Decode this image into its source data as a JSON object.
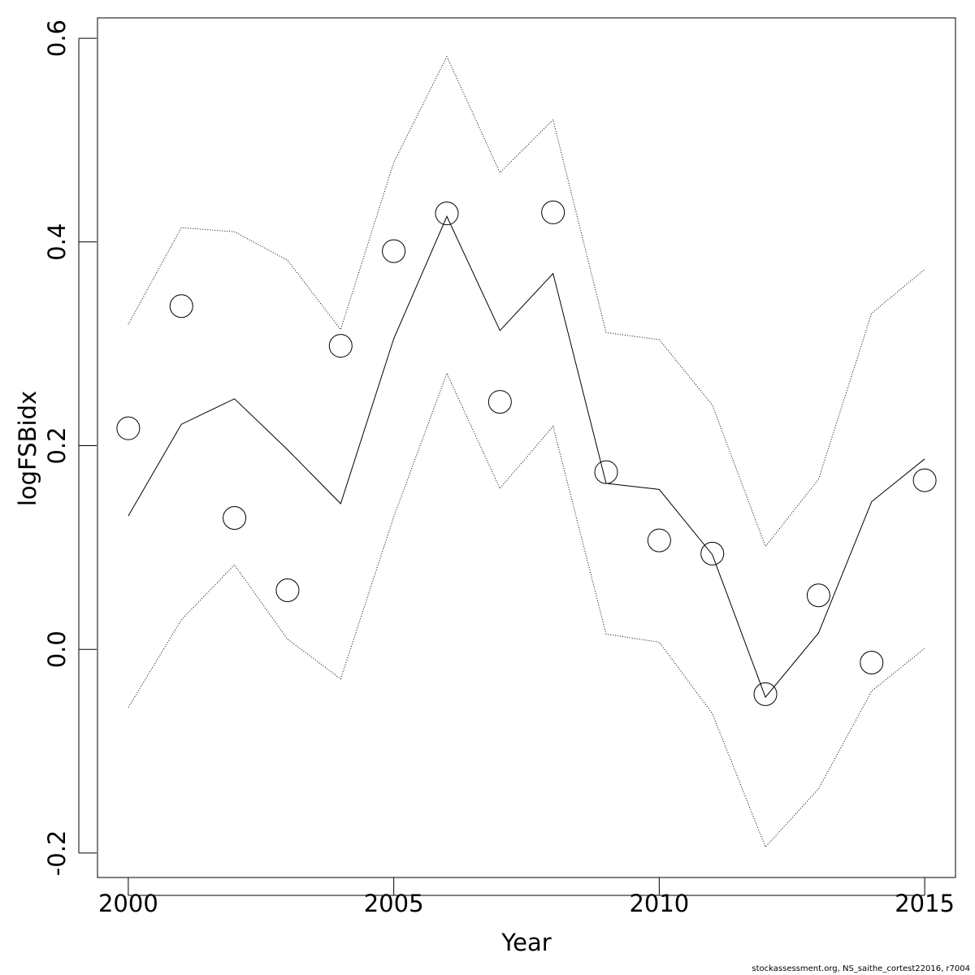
{
  "chart_data": {
    "type": "line",
    "xlabel": "Year",
    "ylabel": "logFSBidx",
    "xlim": [
      1999.42,
      2015.58
    ],
    "ylim": [
      -0.224,
      0.62
    ],
    "x_ticks": [
      2000,
      2005,
      2010,
      2015
    ],
    "y_ticks": [
      -0.2,
      0.0,
      0.2,
      0.4,
      0.6
    ],
    "y_tick_labels": [
      "-0.2",
      "0.0",
      "0.2",
      "0.4",
      "0.6"
    ],
    "x": [
      2000,
      2001,
      2002,
      2003,
      2004,
      2005,
      2006,
      2007,
      2008,
      2009,
      2010,
      2011,
      2012,
      2013,
      2014,
      2015
    ],
    "series": [
      {
        "style": "points",
        "values": [
          0.217,
          0.337,
          0.129,
          0.058,
          0.298,
          0.391,
          0.428,
          0.243,
          0.429,
          0.174,
          0.107,
          0.094,
          -0.044,
          0.053,
          -0.013,
          0.166
        ]
      },
      {
        "style": "solid",
        "values": [
          0.131,
          0.221,
          0.246,
          0.196,
          0.143,
          0.305,
          0.425,
          0.313,
          0.369,
          0.163,
          0.157,
          0.093,
          -0.047,
          0.016,
          0.145,
          0.187
        ]
      },
      {
        "style": "dotted",
        "values": [
          0.319,
          0.414,
          0.41,
          0.382,
          0.314,
          0.478,
          0.582,
          0.468,
          0.52,
          0.311,
          0.304,
          0.24,
          0.101,
          0.167,
          0.33,
          0.373
        ]
      },
      {
        "style": "dotted",
        "values": [
          -0.057,
          0.029,
          0.083,
          0.01,
          -0.029,
          0.13,
          0.271,
          0.158,
          0.219,
          0.015,
          0.007,
          -0.063,
          -0.194,
          -0.137,
          -0.041,
          0.001
        ]
      }
    ]
  },
  "footer": "stockassessment.org, NS_saithe_cortest22016, r7004"
}
